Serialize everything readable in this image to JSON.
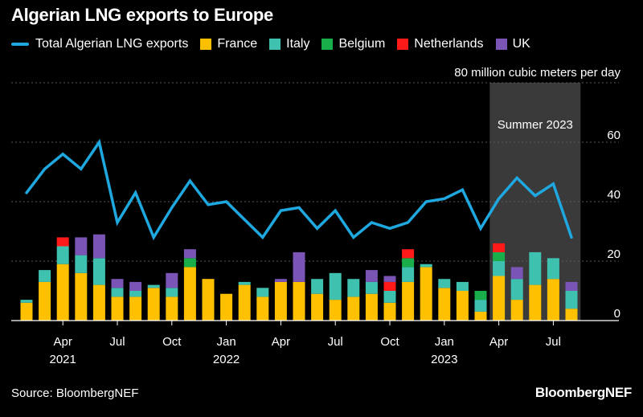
{
  "title": "Algerian LNG exports to Europe",
  "source": "Source: BloombergNEF",
  "brand": "BloombergNEF",
  "colors": {
    "total": "#1fa8e0",
    "France": "#ffc000",
    "Italy": "#3fc1b0",
    "Belgium": "#1aae4a",
    "Netherlands": "#ff1a1a",
    "UK": "#7a55b5",
    "shade": "#3a3a3a"
  },
  "legend": [
    {
      "key": "total",
      "label": "Total Algerian LNG exports"
    },
    {
      "key": "France",
      "label": "France"
    },
    {
      "key": "Italy",
      "label": "Italy"
    },
    {
      "key": "Belgium",
      "label": "Belgium"
    },
    {
      "key": "Netherlands",
      "label": "Netherlands"
    },
    {
      "key": "UK",
      "label": "UK"
    }
  ],
  "chart_data": {
    "type": "bar",
    "title": "Algerian LNG exports to Europe",
    "ylabel": "80 million cubic meters per day",
    "ylim": [
      0,
      80
    ],
    "yticks": [
      0,
      20,
      40,
      60
    ],
    "stacked": true,
    "x_tick_labels": [
      {
        "index": 2,
        "month": "Apr",
        "year": "2021"
      },
      {
        "index": 5,
        "month": "Jul",
        "year": ""
      },
      {
        "index": 8,
        "month": "Oct",
        "year": ""
      },
      {
        "index": 11,
        "month": "Jan",
        "year": "2022"
      },
      {
        "index": 14,
        "month": "Apr",
        "year": ""
      },
      {
        "index": 17,
        "month": "Jul",
        "year": ""
      },
      {
        "index": 20,
        "month": "Oct",
        "year": ""
      },
      {
        "index": 23,
        "month": "Jan",
        "year": "2023"
      },
      {
        "index": 26,
        "month": "Apr",
        "year": ""
      },
      {
        "index": 29,
        "month": "Jul",
        "year": ""
      }
    ],
    "annotation": {
      "label": "Summer 2023",
      "from_index": 26,
      "to_index": 30
    },
    "categories": [
      "Feb 2021",
      "Mar 2021",
      "Apr 2021",
      "May 2021",
      "Jun 2021",
      "Jul 2021",
      "Aug 2021",
      "Sep 2021",
      "Oct 2021",
      "Nov 2021",
      "Dec 2021",
      "Jan 2022",
      "Feb 2022",
      "Mar 2022",
      "Apr 2022",
      "May 2022",
      "Jun 2022",
      "Jul 2022",
      "Aug 2022",
      "Sep 2022",
      "Oct 2022",
      "Nov 2022",
      "Dec 2022",
      "Jan 2023",
      "Feb 2023",
      "Mar 2023",
      "Apr 2023",
      "May 2023",
      "Jun 2023",
      "Jul 2023",
      "Aug 2023"
    ],
    "series": [
      {
        "name": "France",
        "values": [
          6,
          13,
          19,
          16,
          12,
          8,
          8,
          11,
          8,
          18,
          14,
          9,
          12,
          8,
          13,
          13,
          9,
          7,
          8,
          9,
          6,
          13,
          18,
          11,
          10,
          3,
          15,
          7,
          12,
          14,
          4
        ]
      },
      {
        "name": "Italy",
        "values": [
          1,
          4,
          6,
          6,
          9,
          3,
          2,
          1,
          3,
          0,
          0,
          0,
          1,
          3,
          0,
          0,
          5,
          9,
          6,
          4,
          4,
          5,
          1,
          3,
          3,
          4,
          5,
          7,
          11,
          7,
          6
        ]
      },
      {
        "name": "Belgium",
        "values": [
          0,
          0,
          0,
          0,
          0,
          0,
          0,
          0,
          0,
          3,
          0,
          0,
          0,
          0,
          0,
          0,
          0,
          0,
          0,
          0,
          0,
          3,
          0,
          0,
          0,
          3,
          3,
          0,
          0,
          0,
          0
        ]
      },
      {
        "name": "Netherlands",
        "values": [
          0,
          0,
          3,
          0,
          0,
          0,
          0,
          0,
          0,
          0,
          0,
          0,
          0,
          0,
          0,
          0,
          0,
          0,
          0,
          0,
          3,
          3,
          0,
          0,
          0,
          0,
          3,
          0,
          0,
          0,
          0
        ]
      },
      {
        "name": "UK",
        "values": [
          0,
          0,
          0,
          6,
          8,
          3,
          3,
          0,
          5,
          3,
          0,
          0,
          0,
          0,
          1,
          10,
          0,
          0,
          0,
          4,
          2,
          0,
          0,
          0,
          0,
          0,
          0,
          4,
          0,
          0,
          3
        ]
      }
    ],
    "line_series": {
      "name": "Total Algerian LNG exports",
      "values": [
        43,
        51,
        56,
        51,
        60,
        33,
        43,
        28,
        38,
        47,
        39,
        40,
        34,
        28,
        37,
        38,
        31,
        37,
        28,
        33,
        31,
        33,
        40,
        41,
        44,
        31,
        41,
        48,
        42,
        46,
        28
      ]
    }
  }
}
